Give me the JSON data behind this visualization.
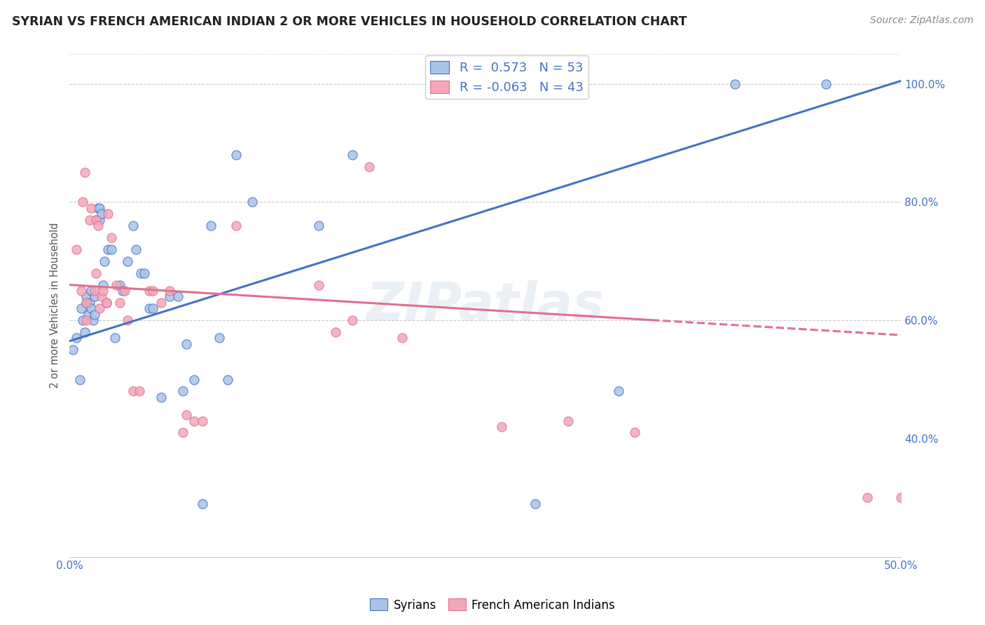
{
  "title": "SYRIAN VS FRENCH AMERICAN INDIAN 2 OR MORE VEHICLES IN HOUSEHOLD CORRELATION CHART",
  "source": "Source: ZipAtlas.com",
  "ylabel": "2 or more Vehicles in Household",
  "xmin": 0.0,
  "xmax": 0.5,
  "ymin": 0.2,
  "ymax": 1.05,
  "y_ticks": [
    0.4,
    0.6,
    0.8,
    1.0
  ],
  "y_tick_labels": [
    "40.0%",
    "60.0%",
    "80.0%",
    "100.0%"
  ],
  "legend_labels": [
    "Syrians",
    "French American Indians"
  ],
  "syrian_color": "#aac4e8",
  "french_color": "#f4a7b9",
  "syrian_line_color": "#4472c4",
  "french_line_color": "#e07090",
  "R_syrian": 0.573,
  "N_syrian": 53,
  "R_french": -0.063,
  "N_french": 43,
  "watermark": "ZIPatlas",
  "syrian_line_x0": 0.0,
  "syrian_line_y0": 0.565,
  "syrian_line_x1": 0.5,
  "syrian_line_y1": 1.005,
  "french_line_x0": 0.0,
  "french_line_y0": 0.66,
  "french_line_x1": 0.5,
  "french_line_y1": 0.575,
  "french_line_solid_end": 0.35,
  "syrian_x": [
    0.002,
    0.004,
    0.006,
    0.007,
    0.008,
    0.009,
    0.01,
    0.01,
    0.011,
    0.012,
    0.013,
    0.013,
    0.014,
    0.015,
    0.015,
    0.016,
    0.017,
    0.018,
    0.018,
    0.019,
    0.02,
    0.021,
    0.022,
    0.023,
    0.025,
    0.027,
    0.03,
    0.032,
    0.035,
    0.038,
    0.04,
    0.043,
    0.045,
    0.048,
    0.05,
    0.055,
    0.06,
    0.065,
    0.068,
    0.07,
    0.075,
    0.08,
    0.085,
    0.09,
    0.095,
    0.1,
    0.11,
    0.15,
    0.17,
    0.28,
    0.33,
    0.4,
    0.455
  ],
  "syrian_y": [
    0.55,
    0.57,
    0.5,
    0.62,
    0.6,
    0.58,
    0.63,
    0.64,
    0.61,
    0.63,
    0.62,
    0.65,
    0.6,
    0.64,
    0.61,
    0.77,
    0.79,
    0.77,
    0.79,
    0.78,
    0.66,
    0.7,
    0.63,
    0.72,
    0.72,
    0.57,
    0.66,
    0.65,
    0.7,
    0.76,
    0.72,
    0.68,
    0.68,
    0.62,
    0.62,
    0.47,
    0.64,
    0.64,
    0.48,
    0.56,
    0.5,
    0.29,
    0.76,
    0.57,
    0.5,
    0.88,
    0.8,
    0.76,
    0.88,
    0.29,
    0.48,
    1.0,
    1.0
  ],
  "french_x": [
    0.004,
    0.007,
    0.008,
    0.009,
    0.01,
    0.01,
    0.012,
    0.013,
    0.015,
    0.016,
    0.016,
    0.017,
    0.018,
    0.019,
    0.02,
    0.022,
    0.023,
    0.025,
    0.028,
    0.03,
    0.033,
    0.035,
    0.038,
    0.042,
    0.048,
    0.05,
    0.055,
    0.06,
    0.068,
    0.07,
    0.075,
    0.08,
    0.1,
    0.15,
    0.16,
    0.17,
    0.18,
    0.2,
    0.26,
    0.3,
    0.34,
    0.48,
    0.5
  ],
  "french_y": [
    0.72,
    0.65,
    0.8,
    0.85,
    0.6,
    0.63,
    0.77,
    0.79,
    0.65,
    0.68,
    0.77,
    0.76,
    0.62,
    0.64,
    0.65,
    0.63,
    0.78,
    0.74,
    0.66,
    0.63,
    0.65,
    0.6,
    0.48,
    0.48,
    0.65,
    0.65,
    0.63,
    0.65,
    0.41,
    0.44,
    0.43,
    0.43,
    0.76,
    0.66,
    0.58,
    0.6,
    0.86,
    0.57,
    0.42,
    0.43,
    0.41,
    0.3,
    0.3
  ]
}
